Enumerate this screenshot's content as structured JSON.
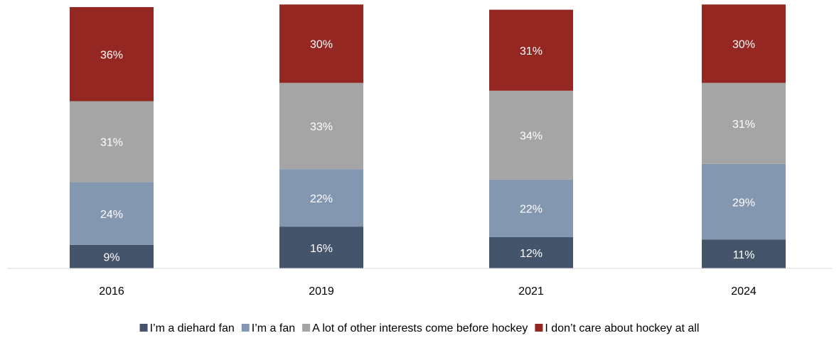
{
  "chart_data": {
    "type": "stacked_bar",
    "categories": [
      "2016",
      "2019",
      "2021",
      "2024"
    ],
    "series": [
      {
        "name": "I’m a diehard fan",
        "color": "#44546a",
        "values": [
          9,
          16,
          12,
          11
        ],
        "value_labels": [
          "9%",
          "16%",
          "12%",
          "11%"
        ]
      },
      {
        "name": "I’m a fan",
        "color": "#8497b0",
        "values": [
          24,
          22,
          22,
          29
        ],
        "value_labels": [
          "24%",
          "22%",
          "22%",
          "29%"
        ]
      },
      {
        "name": "A lot of other interests come before hockey",
        "color": "#a5a5a5",
        "values": [
          31,
          33,
          34,
          31
        ],
        "value_labels": [
          "31%",
          "33%",
          "34%",
          "31%"
        ]
      },
      {
        "name": "I don’t care about hockey at all",
        "color": "#952722",
        "values": [
          36,
          30,
          31,
          30
        ],
        "value_labels": [
          "36%",
          "30%",
          "31%",
          "30%"
        ]
      }
    ],
    "legend": "bottom"
  }
}
